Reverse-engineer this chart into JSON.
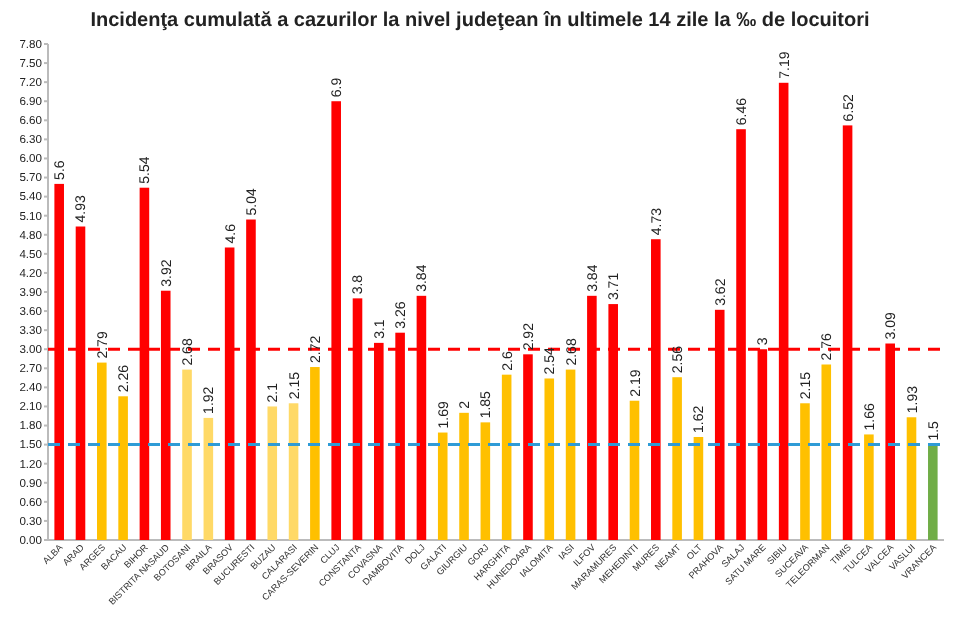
{
  "chart_data": {
    "type": "bar",
    "title": "Incidenţa cumulată a cazurilor la nivel judeţean în ultimele 14 zile la ‰ de locuitori",
    "categories": [
      "ALBA",
      "ARAD",
      "ARGES",
      "BACAU",
      "BIHOR",
      "BISTRITA NASAUD",
      "BOTOSANI",
      "BRAILA",
      "BRASOV",
      "BUCURESTI",
      "BUZAU",
      "CALARASI",
      "CARAS-SEVERIN",
      "CLUJ",
      "CONSTANTA",
      "COVASNA",
      "DAMBOVITA",
      "DOLJ",
      "GALATI",
      "GIURGIU",
      "GORJ",
      "HARGHITA",
      "HUNEDOARA",
      "IALOMITA",
      "IASI",
      "ILFOV",
      "MARAMURES",
      "MEHEDINTI",
      "MURES",
      "NEAMT",
      "OLT",
      "PRAHOVA",
      "SALAJ",
      "SATU MARE",
      "SIBIU",
      "SUCEAVA",
      "TELEORMAN",
      "TIMIS",
      "TULCEA",
      "VALCEA",
      "VASLUI",
      "VRANCEA"
    ],
    "values": [
      5.6,
      4.93,
      2.79,
      2.26,
      5.54,
      3.92,
      2.68,
      1.92,
      4.6,
      5.04,
      2.1,
      2.15,
      2.72,
      6.9,
      3.8,
      3.1,
      3.26,
      3.84,
      1.69,
      2,
      1.85,
      2.6,
      2.92,
      2.54,
      2.68,
      3.84,
      3.71,
      2.19,
      4.73,
      2.56,
      1.62,
      3.62,
      6.46,
      3,
      7.19,
      2.15,
      2.76,
      6.52,
      1.66,
      3.09,
      1.93,
      1.5
    ],
    "colors": [
      "#ff0000",
      "#ff0000",
      "#ffc000",
      "#ffc000",
      "#ff0000",
      "#ff0000",
      "#ffd966",
      "#ffd966",
      "#ff0000",
      "#ff0000",
      "#ffd966",
      "#ffd966",
      "#ffc000",
      "#ff0000",
      "#ff0000",
      "#ff0000",
      "#ff0000",
      "#ff0000",
      "#ffc000",
      "#ffc000",
      "#ffc000",
      "#ffc000",
      "#ff0000",
      "#ffc000",
      "#ffc000",
      "#ff0000",
      "#ff0000",
      "#ffc000",
      "#ff0000",
      "#ffc000",
      "#ffc000",
      "#ff0000",
      "#ff0000",
      "#ff0000",
      "#ff0000",
      "#ffc000",
      "#ffc000",
      "#ff0000",
      "#ffc000",
      "#ff0000",
      "#ffc000",
      "#70ad47"
    ],
    "data_labels": true,
    "ylim": [
      0,
      7.8
    ],
    "yticks": [
      {
        "value": 0,
        "label": "0.00"
      },
      {
        "value": 0.3,
        "label": "0.30"
      },
      {
        "value": 0.6,
        "label": "0.60"
      },
      {
        "value": 0.9,
        "label": "0.90"
      },
      {
        "value": 1.2,
        "label": "1.20"
      },
      {
        "value": 1.5,
        "label": "1.50"
      },
      {
        "value": 1.8,
        "label": "1.80"
      },
      {
        "value": 2.1,
        "label": "2.10"
      },
      {
        "value": 2.4,
        "label": "2.40"
      },
      {
        "value": 2.7,
        "label": "2.70"
      },
      {
        "value": 3,
        "label": "3.00"
      },
      {
        "value": 3.3,
        "label": "3.30"
      },
      {
        "value": 3.6,
        "label": "3.60"
      },
      {
        "value": 3.9,
        "label": "3.90"
      },
      {
        "value": 4.2,
        "label": "4.20"
      },
      {
        "value": 4.5,
        "label": "4.50"
      },
      {
        "value": 4.8,
        "label": "4.80"
      },
      {
        "value": 5.1,
        "label": "5.10"
      },
      {
        "value": 5.4,
        "label": "5.40"
      },
      {
        "value": 5.7,
        "label": "5.70"
      },
      {
        "value": 6,
        "label": "6.00"
      },
      {
        "value": 6.3,
        "label": "6.30"
      },
      {
        "value": 6.6,
        "label": "6.60"
      },
      {
        "value": 6.9,
        "label": "6.90"
      },
      {
        "value": 7.2,
        "label": "7.20"
      },
      {
        "value": 7.5,
        "label": "7.50"
      },
      {
        "value": 7.8,
        "label": "7.80"
      }
    ],
    "grid": false,
    "ref_lines": [
      {
        "axis": "y",
        "value": 3,
        "color": "#ff0000",
        "line_style": "dashed"
      },
      {
        "axis": "y",
        "value": 1.5,
        "color": "#2e9bd6",
        "line_style": "dashed"
      }
    ]
  }
}
